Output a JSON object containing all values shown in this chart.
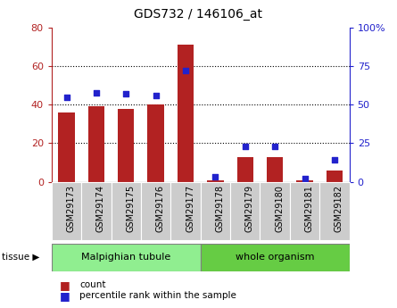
{
  "title": "GDS732 / 146106_at",
  "categories": [
    "GSM29173",
    "GSM29174",
    "GSM29175",
    "GSM29176",
    "GSM29177",
    "GSM29178",
    "GSM29179",
    "GSM29180",
    "GSM29181",
    "GSM29182"
  ],
  "count_values": [
    36,
    39,
    38,
    40,
    71,
    0.5,
    13,
    13,
    0.5,
    6
  ],
  "percentile_values": [
    55,
    58,
    57,
    56,
    72,
    3,
    23,
    23,
    2,
    14
  ],
  "tissue_labels": [
    "Malpighian tubule",
    "whole organism"
  ],
  "tissue_colors": [
    "#90EE90",
    "#66CC44"
  ],
  "tissue_splits": [
    5,
    10
  ],
  "bar_color": "#B22222",
  "dot_color": "#2222CC",
  "left_ylim": [
    0,
    80
  ],
  "right_ylim": [
    0,
    100
  ],
  "left_yticks": [
    0,
    20,
    40,
    60,
    80
  ],
  "right_yticks": [
    0,
    25,
    50,
    75,
    100
  ],
  "right_yticklabels": [
    "0",
    "25",
    "50",
    "75",
    "100%"
  ],
  "grid_values": [
    20,
    40,
    60
  ],
  "background_color": "#ffffff",
  "xtick_bg_color": "#cccccc",
  "legend_labels": [
    "count",
    "percentile rank within the sample"
  ],
  "legend_colors": [
    "#B22222",
    "#2222CC"
  ]
}
